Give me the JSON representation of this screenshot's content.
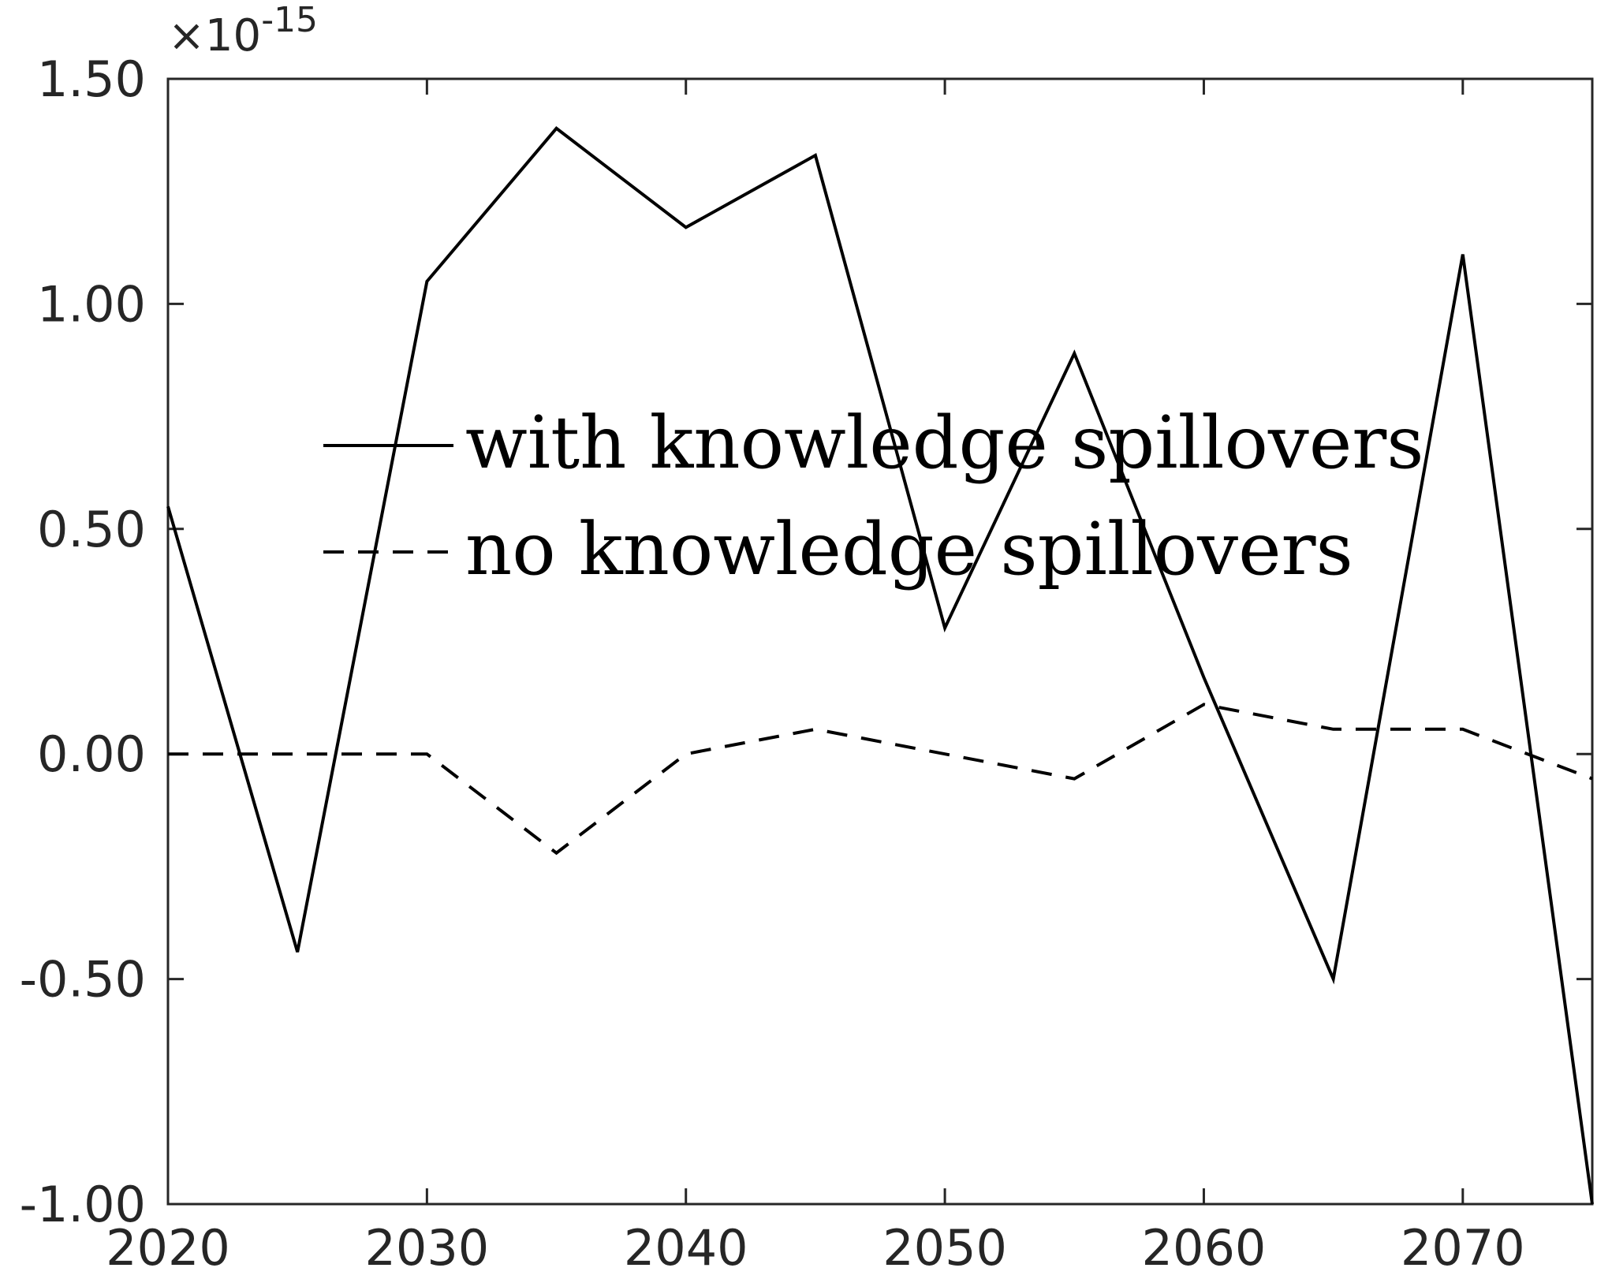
{
  "chart_data": {
    "type": "line",
    "title": "",
    "xlabel": "",
    "ylabel": "",
    "y_exponent_label": "×10",
    "y_exponent_power": "-15",
    "xlim": [
      2020,
      2075
    ],
    "ylim": [
      -1.0,
      1.5
    ],
    "x_ticks": [
      2020,
      2030,
      2040,
      2050,
      2060,
      2070
    ],
    "x_tick_labels": [
      "2020",
      "2030",
      "2040",
      "2050",
      "2060",
      "2070"
    ],
    "y_ticks": [
      -1.0,
      -0.5,
      0.0,
      0.5,
      1.0,
      1.5
    ],
    "y_tick_labels": [
      "-1.00",
      "-0.50",
      "0.00",
      "0.50",
      "1.00",
      "1.50"
    ],
    "grid": false,
    "legend_position": "center",
    "x": [
      2020,
      2025,
      2030,
      2035,
      2040,
      2045,
      2050,
      2055,
      2060,
      2065,
      2070,
      2075
    ],
    "series": [
      {
        "name": "with knowledge spillovers",
        "style": "solid",
        "color": "#000000",
        "values": [
          0.55,
          -0.44,
          1.05,
          1.39,
          1.17,
          1.33,
          0.28,
          0.89,
          0.17,
          -0.5,
          1.11,
          -1.0
        ]
      },
      {
        "name": "no knowledge spillovers",
        "style": "dashed",
        "color": "#000000",
        "values": [
          0.0,
          0.0,
          0.0,
          -0.22,
          0.0,
          0.055,
          0.0,
          -0.055,
          0.11,
          0.055,
          0.055,
          -0.055
        ]
      }
    ]
  }
}
